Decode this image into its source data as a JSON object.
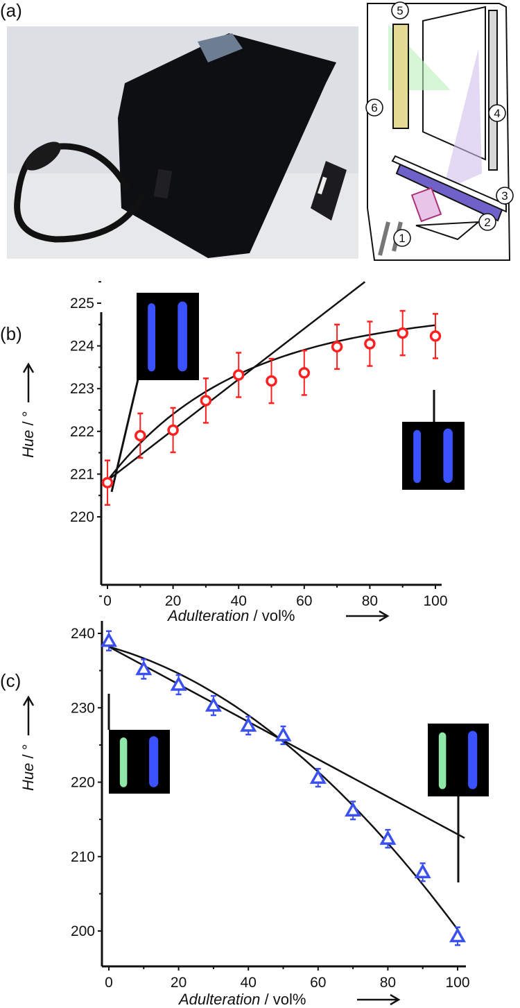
{
  "panel_labels": [
    "(a)",
    "(b)",
    "(c)"
  ],
  "diagram": {
    "callouts": [
      "1",
      "2",
      "3",
      "4",
      "5",
      "6"
    ]
  },
  "chart_data": [
    {
      "type": "scatter",
      "panel": "(b)",
      "xlabel_italic": "Adulteration",
      "xlabel_unit": " / vol%",
      "ylabel_italic": "Hue",
      "ylabel_unit": " / °",
      "xlim": [
        -2,
        103
      ],
      "ylim": [
        219.4,
        225.5
      ],
      "xticks": [
        0,
        20,
        40,
        60,
        80,
        100
      ],
      "yticks": [
        220,
        221,
        222,
        223,
        224,
        225
      ],
      "marker": "open-circle",
      "color": "#ff2020",
      "x": [
        0,
        10,
        20,
        30,
        40,
        50,
        60,
        70,
        80,
        90,
        100
      ],
      "y": [
        220.8,
        221.9,
        222.03,
        222.72,
        223.32,
        223.18,
        223.37,
        223.98,
        224.05,
        224.3,
        224.23
      ],
      "error": [
        0.52,
        0.52,
        0.52,
        0.52,
        0.52,
        0.52,
        0.52,
        0.52,
        0.52,
        0.52,
        0.52
      ],
      "fits": [
        "linear",
        "curve"
      ],
      "grid": false
    },
    {
      "type": "scatter",
      "panel": "(c)",
      "xlabel_italic": "Adulteration",
      "xlabel_unit": " / vol%",
      "ylabel_italic": "Hue",
      "ylabel_unit": " / °",
      "xlim": [
        -2,
        103
      ],
      "ylim": [
        195,
        241
      ],
      "xticks": [
        0,
        20,
        40,
        60,
        80,
        100
      ],
      "yticks": [
        200,
        210,
        220,
        230,
        240
      ],
      "marker": "open-triangle",
      "color": "#3a50f0",
      "x": [
        0,
        10,
        20,
        30,
        40,
        50,
        60,
        70,
        80,
        90,
        100
      ],
      "y": [
        239.0,
        235.2,
        233.1,
        230.3,
        227.6,
        226.3,
        220.6,
        216.2,
        212.4,
        207.9,
        199.3
      ],
      "error": [
        1.3,
        1.3,
        1.3,
        1.3,
        1.2,
        1.2,
        1.2,
        1.2,
        1.2,
        1.2,
        1.2
      ],
      "fits": [
        "linear",
        "curve"
      ],
      "grid": false
    }
  ]
}
